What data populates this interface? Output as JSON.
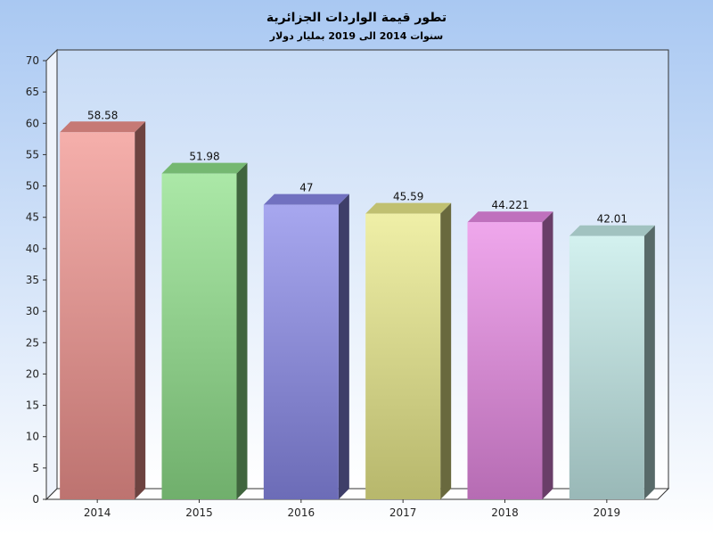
{
  "chart_data": {
    "type": "bar",
    "title": "تطور قيمة الواردات الجزائرية",
    "subtitle": "سنوات 2014 الى 2019 بمليار دولار",
    "categories": [
      "2014",
      "2015",
      "2016",
      "2017",
      "2018",
      "2019"
    ],
    "values": [
      58.58,
      51.98,
      47,
      45.59,
      44.221,
      42.01
    ],
    "data_labels": [
      "58.58",
      "51.98",
      "47",
      "45.59",
      "44.221",
      "42.01"
    ],
    "ylim": [
      0,
      70
    ],
    "yticks": [
      "0",
      "5",
      "10",
      "15",
      "20",
      "25",
      "30",
      "35",
      "40",
      "45",
      "50",
      "55",
      "60",
      "65",
      "70"
    ],
    "xlabel": "",
    "ylabel": "",
    "grid": false,
    "legend": "none",
    "three_d": true,
    "bar_colors": [
      "#f2948f",
      "#8fe08a",
      "#8a8aea",
      "#eaea8a",
      "#e98ae6",
      "#c4ecea"
    ],
    "background_gradient": [
      "#a9c8f2",
      "#ffffff"
    ]
  }
}
